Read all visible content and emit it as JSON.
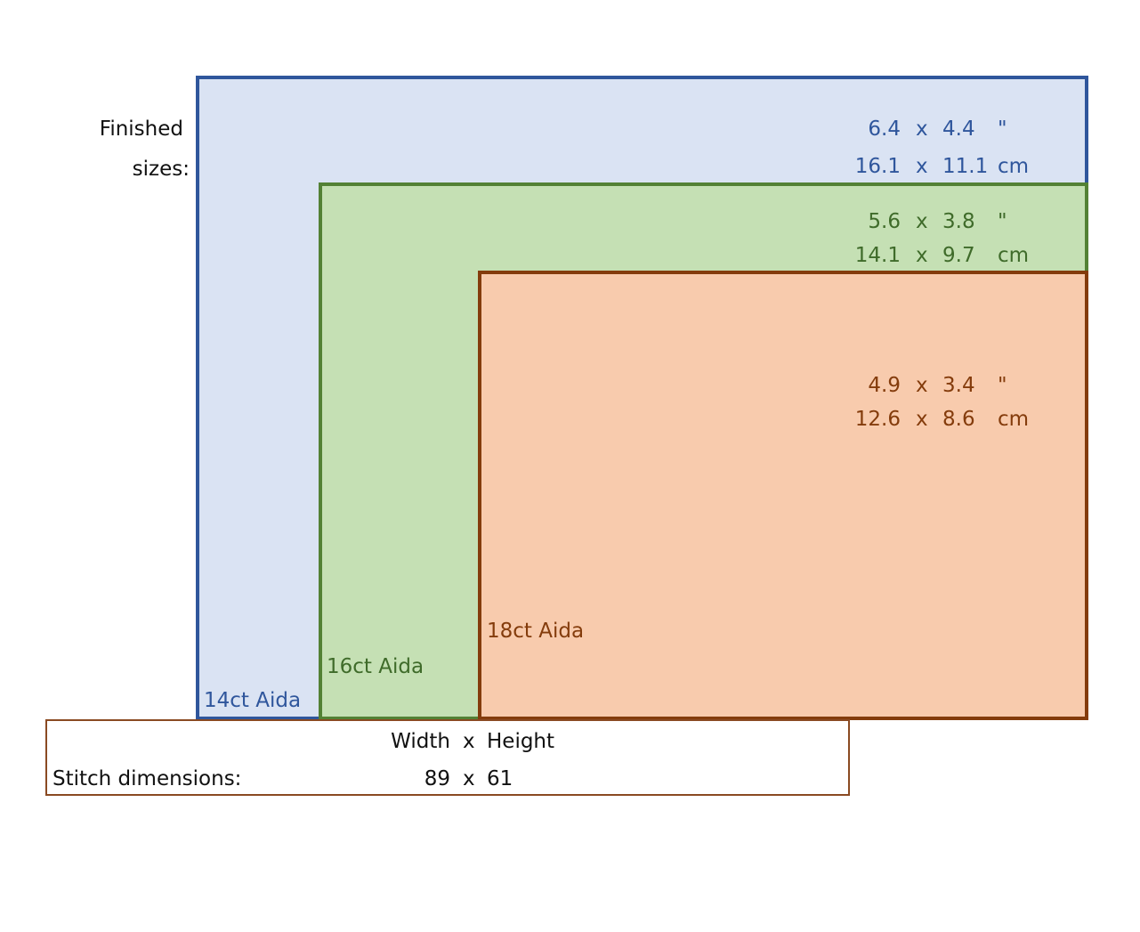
{
  "finished_label": {
    "line1": "Finished",
    "line2": "sizes:"
  },
  "fabrics": [
    {
      "name": "14ct Aida",
      "border": "#2f569c",
      "fill": "#dae3f3",
      "text": "#2f569c",
      "inch": {
        "w": "6.4",
        "x": "x",
        "h": "4.4",
        "unit": "\""
      },
      "cm": {
        "w": "16.1",
        "x": "x",
        "h": "11.1",
        "unit": "cm"
      }
    },
    {
      "name": "16ct Aida",
      "border": "#538135",
      "fill": "#c5e0b4",
      "text": "#3f6b2a",
      "inch": {
        "w": "5.6",
        "x": "x",
        "h": "3.8",
        "unit": "\""
      },
      "cm": {
        "w": "14.1",
        "x": "x",
        "h": "9.7",
        "unit": "cm"
      }
    },
    {
      "name": "18ct Aida",
      "border": "#843c0c",
      "fill": "#f8cbad",
      "text": "#843c0c",
      "inch": {
        "w": "4.9",
        "x": "x",
        "h": "3.4",
        "unit": "\""
      },
      "cm": {
        "w": "12.6",
        "x": "x",
        "h": "8.6",
        "unit": "cm"
      }
    }
  ],
  "stitch": {
    "header_w": "Width",
    "header_x": "x",
    "header_h": "Height",
    "label": "Stitch dimensions:",
    "w": "89",
    "x": "x",
    "h": "61",
    "border": "#8a4a22"
  }
}
